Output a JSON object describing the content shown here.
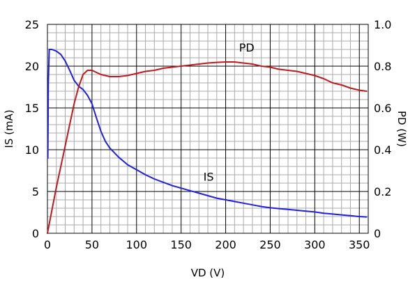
{
  "chart_data": {
    "type": "line",
    "title": "",
    "xlabel": "VD (V)",
    "ylabel_left": "IS (mA)",
    "ylabel_right": "PD (W)",
    "xlim": [
      0,
      360
    ],
    "ylim_left": [
      0,
      25
    ],
    "ylim_right": [
      0,
      1.0
    ],
    "x_ticks": [
      0,
      50,
      100,
      150,
      200,
      250,
      300,
      350
    ],
    "x_tick_labels": [
      "0",
      "50",
      "100",
      "150",
      "200",
      "250",
      "300",
      "350"
    ],
    "y_left_ticks": [
      0,
      5,
      10,
      15,
      20,
      25
    ],
    "y_left_tick_labels": [
      "0",
      "5",
      "10",
      "15",
      "20",
      "25"
    ],
    "y_right_ticks": [
      0,
      0.2,
      0.4,
      0.6,
      0.8,
      1.0
    ],
    "y_right_tick_labels": [
      "0",
      "0.2",
      "0.4",
      "0.6",
      "0.8",
      "1.0"
    ],
    "grid": true,
    "legend": "none",
    "series": [
      {
        "name": "IS",
        "axis": "left",
        "color": "#1f1fe6",
        "label_text": "IS",
        "label_at": [
          175,
          6.3
        ],
        "x": [
          0.5,
          1,
          2,
          5,
          10,
          15,
          20,
          25,
          30,
          35,
          40,
          45,
          50,
          55,
          60,
          65,
          70,
          80,
          90,
          100,
          110,
          120,
          130,
          140,
          150,
          160,
          170,
          180,
          190,
          200,
          210,
          220,
          230,
          240,
          250,
          260,
          270,
          280,
          290,
          300,
          310,
          320,
          330,
          340,
          350,
          358
        ],
        "values": [
          9.0,
          18.0,
          22.0,
          22.0,
          21.8,
          21.4,
          20.6,
          19.5,
          18.3,
          17.6,
          17.2,
          16.5,
          15.5,
          13.8,
          12.2,
          11.0,
          10.2,
          9.1,
          8.2,
          7.6,
          7.0,
          6.5,
          6.1,
          5.7,
          5.4,
          5.1,
          4.8,
          4.5,
          4.2,
          4.0,
          3.8,
          3.6,
          3.4,
          3.2,
          3.05,
          2.95,
          2.85,
          2.75,
          2.65,
          2.55,
          2.4,
          2.3,
          2.2,
          2.1,
          2.0,
          1.95
        ]
      },
      {
        "name": "PD",
        "axis": "right",
        "color": "#c0191e",
        "label_text": "PD",
        "label_at": [
          215,
          0.87
        ],
        "x": [
          0,
          5,
          10,
          15,
          20,
          25,
          30,
          35,
          40,
          45,
          50,
          55,
          60,
          70,
          80,
          90,
          100,
          110,
          120,
          130,
          140,
          150,
          160,
          170,
          180,
          190,
          200,
          210,
          220,
          230,
          240,
          250,
          260,
          270,
          280,
          290,
          300,
          310,
          320,
          330,
          340,
          350,
          358
        ],
        "values": [
          0.0,
          0.11,
          0.22,
          0.32,
          0.42,
          0.52,
          0.62,
          0.7,
          0.76,
          0.78,
          0.78,
          0.77,
          0.76,
          0.75,
          0.75,
          0.755,
          0.765,
          0.775,
          0.78,
          0.79,
          0.795,
          0.8,
          0.805,
          0.81,
          0.815,
          0.818,
          0.82,
          0.82,
          0.815,
          0.81,
          0.8,
          0.795,
          0.785,
          0.78,
          0.775,
          0.765,
          0.755,
          0.74,
          0.72,
          0.71,
          0.695,
          0.685,
          0.68
        ]
      }
    ]
  }
}
